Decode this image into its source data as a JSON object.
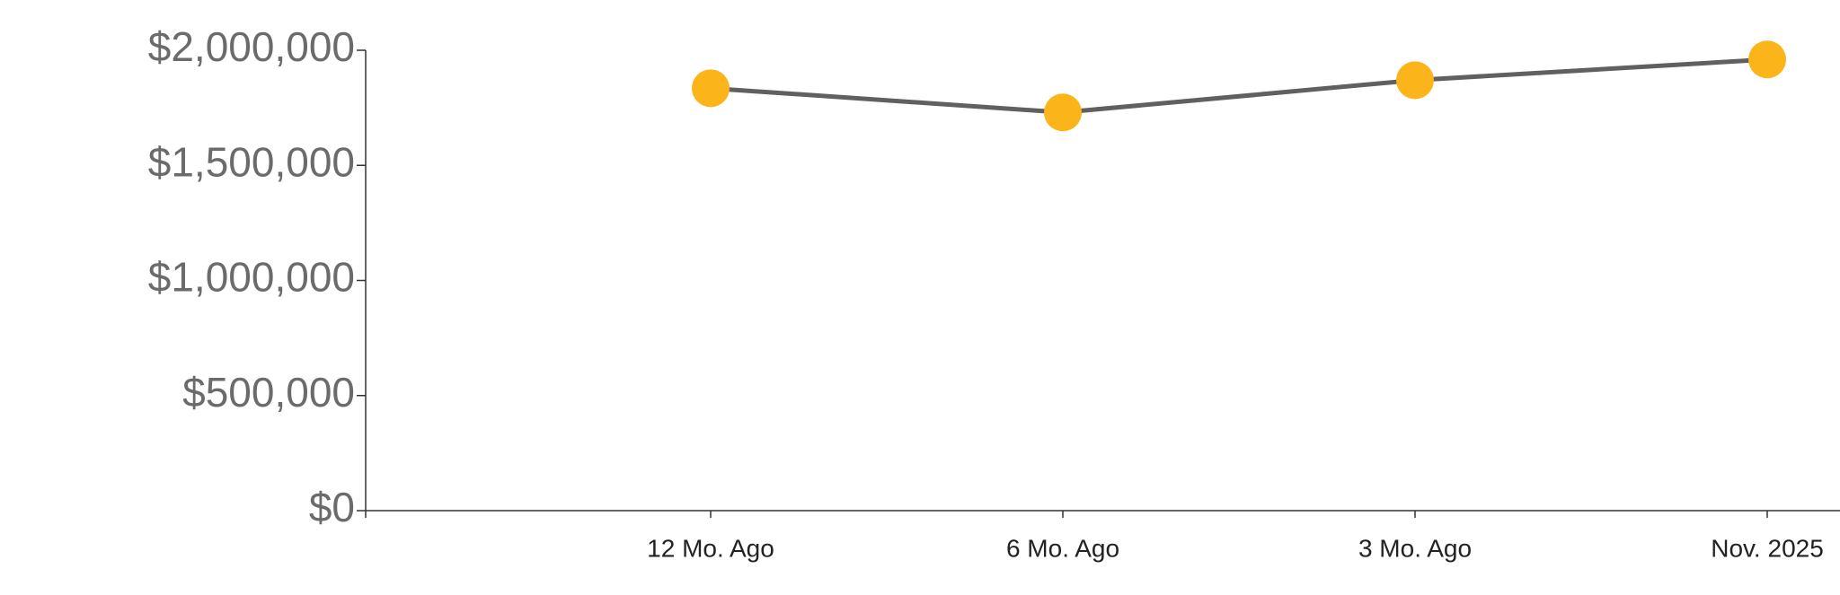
{
  "chart_data": {
    "type": "line",
    "categories": [
      "12 Mo. Ago",
      "6 Mo. Ago",
      "3 Mo. Ago",
      "Nov. 2025"
    ],
    "series": [
      {
        "values": [
          1835000,
          1730000,
          1870000,
          1960000
        ],
        "color": "#606060",
        "marker_color": "#fbb41a"
      }
    ],
    "ylim": [
      0,
      2000000
    ],
    "yticks": [
      {
        "value": 0,
        "label": "$0"
      },
      {
        "value": 500000,
        "label": "$500,000"
      },
      {
        "value": 1000000,
        "label": "$1,000,000"
      },
      {
        "value": 1500000,
        "label": "$1,500,000"
      },
      {
        "value": 2000000,
        "label": "$2,000,000"
      }
    ],
    "grid": false
  }
}
